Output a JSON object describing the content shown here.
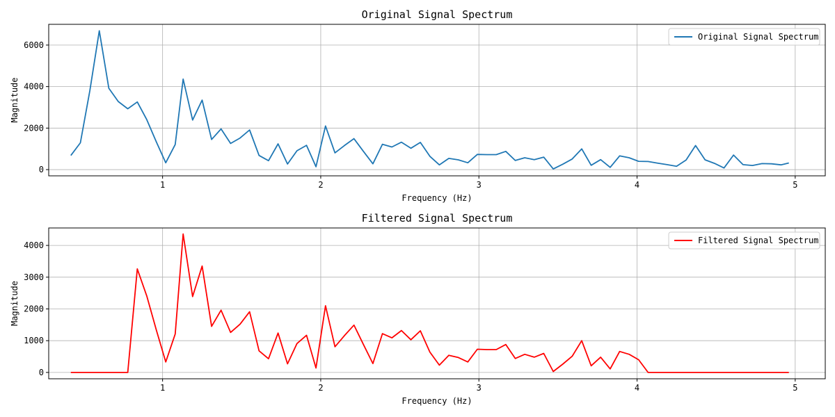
{
  "chart_data": [
    {
      "type": "line",
      "title": "Original Signal Spectrum",
      "xlabel": "Frequency (Hz)",
      "ylabel": "Magnitude",
      "xlim": [
        0.28,
        5.19
      ],
      "ylim": [
        -300,
        7000
      ],
      "xticks": [
        1,
        2,
        3,
        4,
        5
      ],
      "yticks": [
        0,
        2000,
        4000,
        6000
      ],
      "grid": true,
      "legend_position": "top-right",
      "series": [
        {
          "name": "Original Signal Spectrum",
          "color": "#1f77b4",
          "x": [
            0.42,
            0.48,
            0.54,
            0.6,
            0.66,
            0.72,
            0.78,
            0.84,
            0.9,
            0.96,
            1.02,
            1.08,
            1.13,
            1.19,
            1.25,
            1.31,
            1.37,
            1.43,
            1.49,
            1.55,
            1.61,
            1.67,
            1.73,
            1.79,
            1.85,
            1.91,
            1.97,
            2.03,
            2.09,
            2.15,
            2.21,
            2.27,
            2.33,
            2.39,
            2.45,
            2.51,
            2.57,
            2.63,
            2.69,
            2.75,
            2.81,
            2.87,
            2.93,
            2.99,
            3.05,
            3.11,
            3.17,
            3.23,
            3.29,
            3.35,
            3.41,
            3.47,
            3.53,
            3.59,
            3.65,
            3.71,
            3.77,
            3.83,
            3.89,
            3.95,
            4.01,
            4.07,
            4.13,
            4.19,
            4.25,
            4.31,
            4.37,
            4.43,
            4.49,
            4.55,
            4.61,
            4.67,
            4.73,
            4.79,
            4.85,
            4.91,
            4.96
          ],
          "y": [
            680,
            1290,
            3800,
            6690,
            3920,
            3280,
            2930,
            3260,
            2410,
            1340,
            330,
            1210,
            4360,
            2390,
            3350,
            1450,
            1960,
            1260,
            1520,
            1910,
            680,
            430,
            1240,
            270,
            910,
            1170,
            140,
            2100,
            810,
            1160,
            1490,
            880,
            280,
            1220,
            1090,
            1320,
            1030,
            1310,
            640,
            230,
            540,
            470,
            330,
            730,
            720,
            720,
            880,
            440,
            570,
            480,
            600,
            30,
            260,
            510,
            1000,
            210,
            480,
            110,
            660,
            570,
            400,
            390,
            310,
            240,
            160,
            460,
            1160,
            470,
            300,
            80,
            700,
            240,
            200,
            290,
            280,
            230,
            320
          ]
        }
      ]
    },
    {
      "type": "line",
      "title": "Filtered Signal Spectrum",
      "xlabel": "Frequency (Hz)",
      "ylabel": "Magnitude",
      "xlim": [
        0.28,
        5.19
      ],
      "ylim": [
        -200,
        4550
      ],
      "xticks": [
        1,
        2,
        3,
        4,
        5
      ],
      "yticks": [
        0,
        1000,
        2000,
        3000,
        4000
      ],
      "grid": true,
      "legend_position": "top-right",
      "series": [
        {
          "name": "Filtered Signal Spectrum",
          "color": "#ff0000",
          "x": [
            0.42,
            0.48,
            0.54,
            0.6,
            0.66,
            0.72,
            0.78,
            0.84,
            0.9,
            0.96,
            1.02,
            1.08,
            1.13,
            1.19,
            1.25,
            1.31,
            1.37,
            1.43,
            1.49,
            1.55,
            1.61,
            1.67,
            1.73,
            1.79,
            1.85,
            1.91,
            1.97,
            2.03,
            2.09,
            2.15,
            2.21,
            2.27,
            2.33,
            2.39,
            2.45,
            2.51,
            2.57,
            2.63,
            2.69,
            2.75,
            2.81,
            2.87,
            2.93,
            2.99,
            3.05,
            3.11,
            3.17,
            3.23,
            3.29,
            3.35,
            3.41,
            3.47,
            3.53,
            3.59,
            3.65,
            3.71,
            3.77,
            3.83,
            3.89,
            3.95,
            4.01,
            4.07,
            4.13,
            4.19,
            4.25,
            4.31,
            4.37,
            4.43,
            4.49,
            4.55,
            4.61,
            4.67,
            4.73,
            4.79,
            4.85,
            4.91,
            4.96
          ],
          "y": [
            0,
            0,
            0,
            0,
            0,
            0,
            0,
            3260,
            2410,
            1340,
            330,
            1210,
            4360,
            2390,
            3350,
            1450,
            1960,
            1260,
            1520,
            1910,
            680,
            430,
            1240,
            270,
            910,
            1170,
            140,
            2100,
            810,
            1160,
            1490,
            880,
            280,
            1220,
            1090,
            1320,
            1030,
            1310,
            640,
            230,
            540,
            470,
            330,
            730,
            720,
            720,
            880,
            440,
            570,
            480,
            600,
            30,
            260,
            510,
            1000,
            210,
            480,
            110,
            660,
            570,
            400,
            0,
            0,
            0,
            0,
            0,
            0,
            0,
            0,
            0,
            0,
            0,
            0,
            0,
            0,
            0,
            0
          ]
        }
      ]
    }
  ]
}
